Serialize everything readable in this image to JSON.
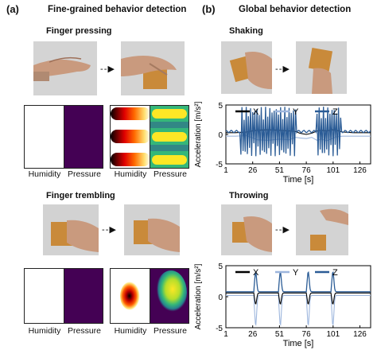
{
  "figure": {
    "panel_a": {
      "letter": "(a)",
      "title": "Fine-grained behavior detection",
      "top_subtitle": "Finger pressing",
      "bottom_subtitle": "Finger trembling",
      "heatmap_labels": {
        "humidity": "Humidity",
        "pressure": "Pressure"
      }
    },
    "panel_b": {
      "letter": "(b)",
      "title": "Global behavior detection",
      "top_subtitle": "Shaking",
      "bottom_subtitle": "Throwing"
    },
    "arrow_glyph": "- - ▶",
    "colors": {
      "viridis_dark": "#440154",
      "viridis_yellow": "#fde725",
      "viridis_green": "#3aba76",
      "hot_red": "#e00000",
      "hot_black": "#0a0000",
      "series_x": "#000000",
      "series_y": "#9db6dd",
      "series_z": "#2b5c96"
    }
  },
  "chart_data": [
    {
      "type": "line",
      "title": "",
      "xlabel": "Time [s]",
      "ylabel": "Acceleration [m/s²]",
      "xlim": [
        1,
        136
      ],
      "ylim": [
        -5,
        5
      ],
      "xticks": [
        1,
        26,
        51,
        76,
        101,
        126
      ],
      "yticks": [
        -5,
        0,
        5
      ],
      "legend": [
        "X",
        "Y",
        "Z"
      ],
      "legend_position": "top",
      "series": [
        {
          "name": "X",
          "x": [
            1,
            10,
            20,
            26,
            30,
            40,
            51,
            60,
            66,
            70,
            76,
            81,
            86,
            90,
            95,
            100,
            104,
            110,
            120,
            126,
            136
          ],
          "y": [
            0.3,
            0.3,
            0.4,
            0.6,
            0.7,
            0.8,
            0.7,
            0.6,
            0.5,
            0.2,
            0.0,
            0.2,
            0.6,
            0.7,
            0.6,
            0.8,
            0.7,
            0.4,
            0.3,
            0.3,
            0.3
          ]
        },
        {
          "name": "Y",
          "x": [
            1,
            10,
            20,
            26,
            30,
            40,
            51,
            60,
            66,
            70,
            76,
            81,
            86,
            90,
            95,
            100,
            104,
            110,
            120,
            126,
            136
          ],
          "y": [
            -0.3,
            -0.3,
            -0.2,
            -0.6,
            -0.9,
            -1.0,
            -0.8,
            -0.9,
            -0.5,
            -0.6,
            -0.7,
            -0.5,
            -1.0,
            -0.8,
            -1.1,
            -0.7,
            -0.4,
            -0.3,
            -0.3,
            -0.3,
            -0.3
          ]
        },
        {
          "name": "Z",
          "burst_ranges": [
            [
              15,
              66
            ],
            [
              86,
              108
            ]
          ],
          "amplitude": 4.2,
          "baseline": 0.5
        }
      ]
    },
    {
      "type": "line",
      "title": "",
      "xlabel": "Time [s]",
      "ylabel": "Acceleration [m/s²]",
      "xlim": [
        1,
        136
      ],
      "ylim": [
        -5,
        5
      ],
      "xticks": [
        1,
        26,
        51,
        76,
        101,
        126
      ],
      "yticks": [
        -5,
        0,
        5
      ],
      "legend": [
        "X",
        "Y",
        "Z"
      ],
      "legend_position": "top",
      "series": [
        {
          "name": "X",
          "spikes": [
            28,
            51,
            77,
            100
          ],
          "baseline": 0.6,
          "amplitude": -1.8
        },
        {
          "name": "Y",
          "spikes": [
            28,
            51,
            77,
            100
          ],
          "baseline": 0.2,
          "amplitude": -4.8
        },
        {
          "name": "Z",
          "spikes": [
            28,
            51,
            77,
            100
          ],
          "baseline": 0.8,
          "amplitude": 3.2
        }
      ]
    }
  ]
}
